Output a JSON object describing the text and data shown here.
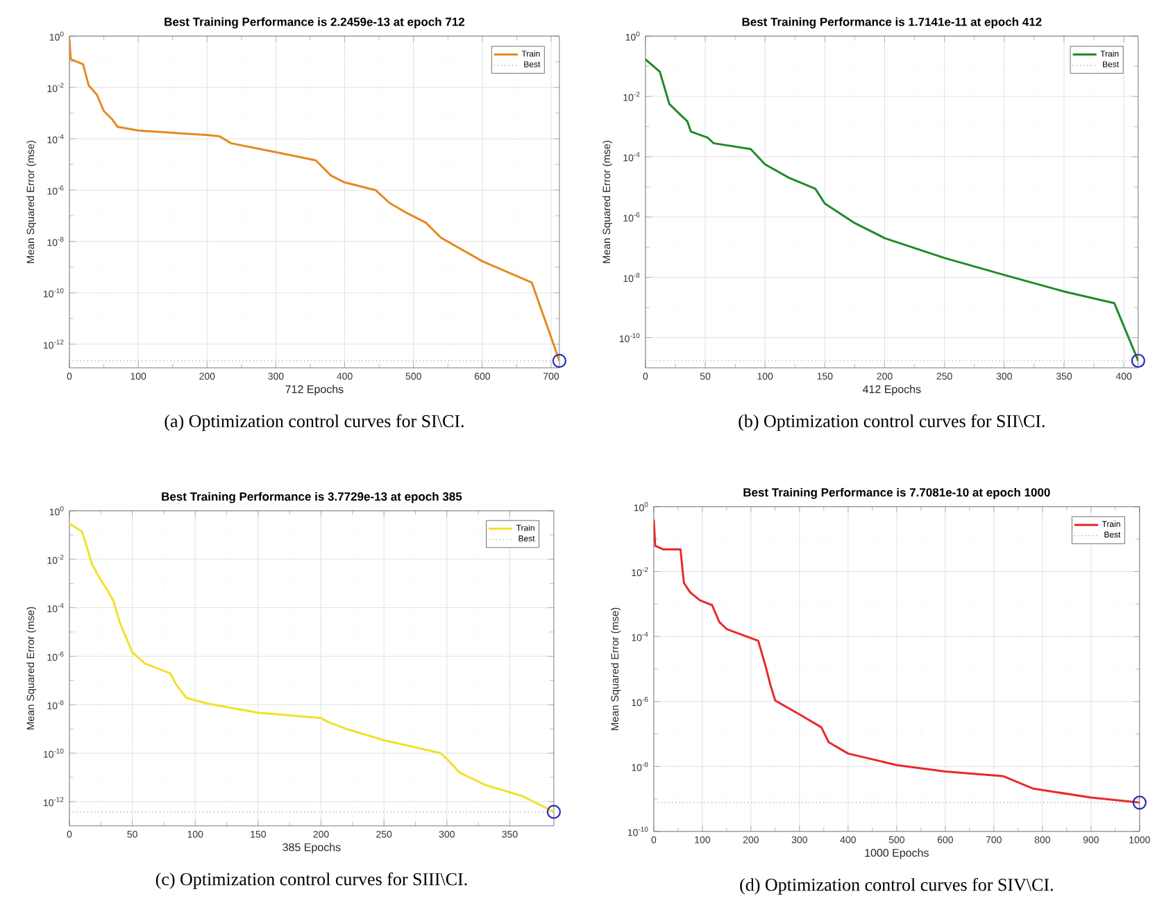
{
  "chart_data": [
    {
      "type": "line",
      "title": "Best Training Performance is 2.2459e-13 at epoch 712",
      "xlabel": "712 Epochs",
      "ylabel": "Mean Squared Error  (mse)",
      "log": "y",
      "grid": true,
      "legend": "top right",
      "xlim": [
        0,
        712
      ],
      "ylim": [
        1.2e-13,
        1
      ],
      "xticks": [
        0,
        100,
        200,
        300,
        400,
        500,
        600,
        700
      ],
      "yticks": [
        {
          "value": 1,
          "label": "10$^{0}$"
        },
        {
          "value": 0.01,
          "label": "10$^{-2}$"
        },
        {
          "value": 0.0001,
          "label": "10$^{-4}$"
        },
        {
          "value": 1e-06,
          "label": "10$^{-6}$"
        },
        {
          "value": 1e-08,
          "label": "10$^{-8}$"
        },
        {
          "value": 1e-10,
          "label": "10$^{-10}$"
        },
        {
          "value": 1e-12,
          "label": "10$^{-12}$"
        }
      ],
      "series": [
        {
          "name": "Train",
          "line_style": "solid",
          "color": "#e6891f",
          "x": [
            0,
            2,
            20,
            28,
            40,
            50,
            62,
            70,
            100,
            200,
            218,
            235,
            300,
            358,
            380,
            400,
            445,
            465,
            490,
            518,
            540,
            600,
            672,
            712
          ],
          "values": [
            0.75,
            0.126,
            0.08,
            0.012,
            0.0052,
            0.0012,
            0.00058,
            0.00029,
            0.00021,
            0.00014,
            0.000126,
            6.7e-05,
            3e-05,
            1.45e-05,
            3.7e-06,
            2e-06,
            1e-06,
            3.2e-07,
            1.3e-07,
            5.4e-08,
            1.4e-08,
            1.7e-09,
            2.5e-10,
            2.2459e-13
          ]
        },
        {
          "name": "Best",
          "type": "line",
          "line_style": "dotted",
          "color": "#8c8cd0",
          "x": [
            0,
            712
          ],
          "values": [
            2.2459e-13,
            2.2459e-13
          ]
        },
        {
          "type": "scatter",
          "marker": "circle",
          "color": "#2b2bb0",
          "x": [
            712
          ],
          "values": [
            2.2459e-13
          ]
        }
      ],
      "annotations": [
        "(a) Optimization control curves for SI\\CI."
      ]
    },
    {
      "type": "line",
      "title": "Best Training Performance is 1.7141e-11 at epoch 412",
      "xlabel": "412 Epochs",
      "ylabel": "Mean Squared Error  (mse)",
      "log": "y",
      "grid": true,
      "legend": "top right",
      "xlim": [
        0,
        412
      ],
      "ylim": [
        1e-11,
        1
      ],
      "xticks": [
        0,
        50,
        100,
        150,
        200,
        250,
        300,
        350,
        400
      ],
      "yticks": [
        {
          "value": 1,
          "label": "10$^{0}$"
        },
        {
          "value": 0.01,
          "label": "10$^{-2}$"
        },
        {
          "value": 0.0001,
          "label": "10$^{-4}$"
        },
        {
          "value": 1e-06,
          "label": "10$^{-6}$"
        },
        {
          "value": 1e-08,
          "label": "10$^{-8}$"
        },
        {
          "value": 1e-10,
          "label": "10$^{-10}$"
        }
      ],
      "series": [
        {
          "name": "Train",
          "line_style": "solid",
          "color": "#1f8a2a",
          "x": [
            0,
            12,
            20,
            30,
            35,
            38,
            52,
            57,
            88,
            100,
            120,
            142,
            150,
            175,
            200,
            250,
            300,
            350,
            392,
            412
          ],
          "values": [
            0.17,
            0.066,
            0.0056,
            0.0023,
            0.0015,
            0.00068,
            0.00043,
            0.00028,
            0.00018,
            5.6e-05,
            2e-05,
            8.7e-06,
            2.8e-06,
            6.3e-07,
            2e-07,
            4.4e-08,
            1.2e-08,
            3.4e-09,
            1.4e-09,
            1.7141e-11
          ]
        },
        {
          "name": "Best",
          "type": "line",
          "line_style": "dotted",
          "color": "#8c8cd0",
          "x": [
            0,
            412
          ],
          "values": [
            1.7141e-11,
            1.7141e-11
          ]
        },
        {
          "type": "scatter",
          "marker": "circle",
          "color": "#2b2bb0",
          "x": [
            412
          ],
          "values": [
            1.7141e-11
          ]
        }
      ],
      "annotations": [
        "(b) Optimization control curves for SII\\CI."
      ]
    },
    {
      "type": "line",
      "title": "Best Training Performance is 3.7729e-13 at epoch 385",
      "xlabel": "385 Epochs",
      "ylabel": "Mean Squared Error  (mse)",
      "log": "y",
      "grid": true,
      "legend": "top right",
      "xlim": [
        0,
        385
      ],
      "ylim": [
        1e-13,
        1
      ],
      "xticks": [
        0,
        50,
        100,
        150,
        200,
        250,
        300,
        350
      ],
      "yticks": [
        {
          "value": 1,
          "label": "10$^{0}$"
        },
        {
          "value": 0.01,
          "label": "10$^{-2}$"
        },
        {
          "value": 0.0001,
          "label": "10$^{-4}$"
        },
        {
          "value": 1e-06,
          "label": "10$^{-6}$"
        },
        {
          "value": 1e-08,
          "label": "10$^{-8}$"
        },
        {
          "value": 1e-10,
          "label": "10$^{-10}$"
        },
        {
          "value": 1e-12,
          "label": "10$^{-12}$"
        }
      ],
      "series": [
        {
          "name": "Train",
          "line_style": "solid",
          "color": "#f2e02a",
          "x": [
            0,
            10,
            13,
            18,
            25,
            30,
            35,
            40,
            50,
            60,
            80,
            85,
            93,
            110,
            150,
            200,
            205,
            220,
            250,
            295,
            300,
            310,
            330,
            360,
            385
          ],
          "values": [
            0.3,
            0.14,
            0.046,
            0.0063,
            0.00135,
            0.00056,
            0.00019,
            2.5e-05,
            1.45e-06,
            5e-07,
            2e-07,
            6.6e-08,
            1.9e-08,
            1.1e-08,
            4.7e-09,
            2.8e-09,
            2e-09,
            1e-09,
            3.4e-10,
            1e-10,
            5.8e-11,
            1.6e-11,
            5e-12,
            1.7e-12,
            3.7729e-13
          ]
        },
        {
          "name": "Best",
          "type": "line",
          "line_style": "dotted",
          "color": "#8c8cd0",
          "x": [
            0,
            385
          ],
          "values": [
            3.7729e-13,
            3.7729e-13
          ]
        },
        {
          "type": "scatter",
          "marker": "circle",
          "color": "#2b2bb0",
          "x": [
            385
          ],
          "values": [
            3.7729e-13
          ]
        }
      ],
      "annotations": [
        "(c) Optimization control curves for SIII\\CI."
      ]
    },
    {
      "type": "line",
      "title": "Best Training Performance is 7.7081e-10 at epoch 1000",
      "xlabel": "1000 Epochs",
      "ylabel": "Mean Squared Error  (mse)",
      "log": "y",
      "grid": true,
      "legend": "top right",
      "xlim": [
        0,
        1000
      ],
      "ylim": [
        1e-10,
        1
      ],
      "xticks": [
        0,
        100,
        200,
        300,
        400,
        500,
        600,
        700,
        800,
        900,
        1000
      ],
      "yticks": [
        {
          "value": 1,
          "label": "10$^{0}$"
        },
        {
          "value": 0.01,
          "label": "10$^{-2}$"
        },
        {
          "value": 0.0001,
          "label": "10$^{-4}$"
        },
        {
          "value": 1e-06,
          "label": "10$^{-6}$"
        },
        {
          "value": 1e-08,
          "label": "10$^{-8}$"
        },
        {
          "value": 1e-10,
          "label": "10$^{-10}$"
        }
      ],
      "series": [
        {
          "name": "Train",
          "line_style": "solid",
          "color": "#e82a2a",
          "x": [
            0,
            3,
            20,
            55,
            62,
            75,
            95,
            120,
            135,
            150,
            215,
            230,
            240,
            250,
            300,
            345,
            360,
            400,
            500,
            600,
            720,
            780,
            900,
            1000
          ],
          "values": [
            0.4,
            0.062,
            0.048,
            0.048,
            0.0045,
            0.0023,
            0.0013,
            0.00093,
            0.00028,
            0.00017,
            7.4e-05,
            1.25e-05,
            3.3e-06,
            1.07e-06,
            4e-07,
            1.6e-07,
            5.6e-08,
            2.5e-08,
            1.1e-08,
            7e-09,
            5e-09,
            2.1e-09,
            1.1e-09,
            7.7081e-10
          ]
        },
        {
          "name": "Best",
          "type": "line",
          "line_style": "dotted",
          "color": "#8c8cd0",
          "x": [
            0,
            1000
          ],
          "values": [
            7.7081e-10,
            7.7081e-10
          ]
        },
        {
          "type": "scatter",
          "marker": "circle",
          "color": "#2b2bb0",
          "x": [
            1000
          ],
          "values": [
            7.7081e-10
          ]
        }
      ],
      "annotations": [
        "(d) Optimization control curves for SIV\\CI."
      ]
    }
  ]
}
